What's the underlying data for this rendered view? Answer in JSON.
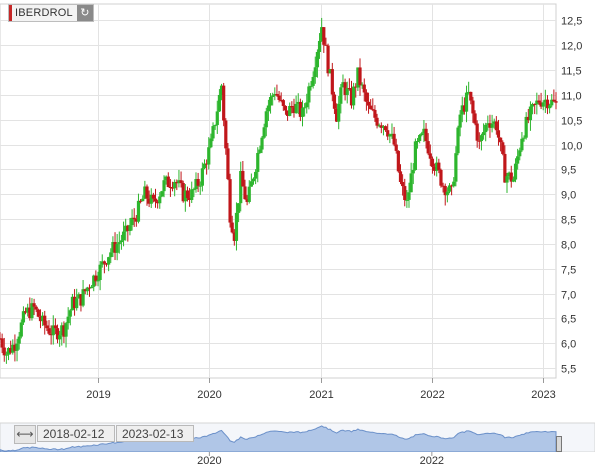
{
  "ticker": {
    "label": "IBERDROL",
    "refresh_icon": "refresh-icon"
  },
  "colors": {
    "up": "#2db52d",
    "down": "#c0161a",
    "grid": "#e3e3e3",
    "nav_fill": "#a9c1e6",
    "nav_line": "#5d86c4"
  },
  "range": {
    "start": "2018-02-12",
    "end": "2023-02-13",
    "nav_year_labels": [
      "2020",
      "2022"
    ]
  },
  "chart_data": {
    "type": "candlestick",
    "title": "",
    "xlabel": "",
    "ylabel": "",
    "x_ticks": [
      "2019",
      "2020",
      "2021",
      "2022",
      "2023"
    ],
    "y_ticks": [
      5.5,
      6.0,
      6.5,
      7.0,
      7.5,
      8.0,
      8.5,
      9.0,
      9.5,
      10.0,
      10.5,
      11.0,
      11.5,
      12.0,
      12.5
    ],
    "y_tick_labels": [
      "5,5",
      "6,0",
      "6,5",
      "7,0",
      "7,5",
      "8,0",
      "8,5",
      "9,0",
      "9,5",
      "10,0",
      "10,5",
      "11,0",
      "11,5",
      "12,0",
      "12,5"
    ],
    "ylim": [
      5.3,
      12.75
    ],
    "x_range": [
      "2018-02-12",
      "2023-02-13"
    ],
    "y_axis_position": "right",
    "grid": true,
    "series": [
      {
        "name": "",
        "close_path": [
          [
            "2018-02-12",
            6.1
          ],
          [
            "2018-03-05",
            5.8
          ],
          [
            "2018-04-02",
            6.0
          ],
          [
            "2018-05-07",
            6.6
          ],
          [
            "2018-06-04",
            6.7
          ],
          [
            "2018-07-02",
            6.4
          ],
          [
            "2018-08-06",
            6.2
          ],
          [
            "2018-09-10",
            6.3
          ],
          [
            "2018-10-08",
            6.8
          ],
          [
            "2018-11-05",
            6.9
          ],
          [
            "2018-12-03",
            7.2
          ],
          [
            "2019-01-07",
            7.5
          ],
          [
            "2019-02-04",
            7.8
          ],
          [
            "2019-03-04",
            8.0
          ],
          [
            "2019-04-01",
            8.2
          ],
          [
            "2019-05-06",
            8.6
          ],
          [
            "2019-06-03",
            9.0
          ],
          [
            "2019-07-01",
            8.8
          ],
          [
            "2019-08-05",
            9.2
          ],
          [
            "2019-09-09",
            9.3
          ],
          [
            "2019-10-07",
            9.0
          ],
          [
            "2019-11-04",
            9.0
          ],
          [
            "2019-12-02",
            9.3
          ],
          [
            "2020-01-06",
            10.0
          ],
          [
            "2020-02-10",
            11.2
          ],
          [
            "2020-03-09",
            8.6
          ],
          [
            "2020-03-23",
            8.2
          ],
          [
            "2020-04-13",
            9.3
          ],
          [
            "2020-05-04",
            8.8
          ],
          [
            "2020-06-01",
            9.6
          ],
          [
            "2020-07-06",
            10.7
          ],
          [
            "2020-08-03",
            11.1
          ],
          [
            "2020-09-07",
            10.6
          ],
          [
            "2020-10-05",
            10.8
          ],
          [
            "2020-11-02",
            10.6
          ],
          [
            "2020-12-07",
            11.5
          ],
          [
            "2021-01-04",
            12.4
          ],
          [
            "2021-01-25",
            11.6
          ],
          [
            "2021-02-22",
            10.6
          ],
          [
            "2021-03-15",
            11.2
          ],
          [
            "2021-04-12",
            10.9
          ],
          [
            "2021-05-03",
            11.4
          ],
          [
            "2021-06-07",
            10.7
          ],
          [
            "2021-07-05",
            10.5
          ],
          [
            "2021-08-02",
            10.4
          ],
          [
            "2021-08-30",
            10.0
          ],
          [
            "2021-09-20",
            9.2
          ],
          [
            "2021-10-11",
            8.8
          ],
          [
            "2021-11-08",
            9.9
          ],
          [
            "2021-12-06",
            10.2
          ],
          [
            "2022-01-10",
            9.6
          ],
          [
            "2022-02-07",
            9.2
          ],
          [
            "2022-03-07",
            9.0
          ],
          [
            "2022-04-04",
            10.6
          ],
          [
            "2022-05-02",
            11.0
          ],
          [
            "2022-06-06",
            10.0
          ],
          [
            "2022-07-04",
            10.5
          ],
          [
            "2022-08-01",
            10.4
          ],
          [
            "2022-08-29",
            9.4
          ],
          [
            "2022-09-26",
            9.3
          ],
          [
            "2022-10-24",
            10.2
          ],
          [
            "2022-11-21",
            10.6
          ],
          [
            "2022-12-19",
            10.9
          ],
          [
            "2023-01-16",
            10.9
          ],
          [
            "2023-02-13",
            10.8
          ]
        ]
      }
    ]
  }
}
